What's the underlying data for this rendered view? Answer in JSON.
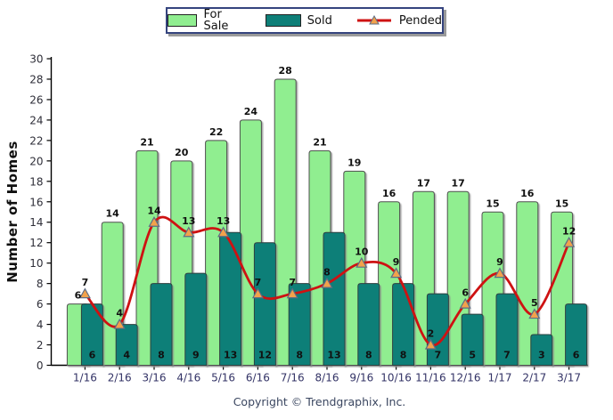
{
  "footer": {
    "copyright": "Copyright © Trendgraphix, Inc."
  },
  "colors": {
    "for_sale": "#90EE90",
    "sold": "#0E7F78",
    "pended_line": "#CE1212",
    "marker_fill": "#F2A24B",
    "marker_stroke": "#5E6C85",
    "legend_border": "#35447E",
    "axis": "#000000",
    "x_tick_label": "#333366"
  },
  "chart_data": {
    "type": "bar",
    "title": "",
    "xlabel": "",
    "ylabel": "Number of Homes",
    "ylim": [
      0,
      30
    ],
    "ytick_step": 2,
    "grid": false,
    "legend_position": "top-center",
    "categories": [
      "1/16",
      "2/16",
      "3/16",
      "4/16",
      "5/16",
      "6/16",
      "7/16",
      "8/16",
      "9/16",
      "10/16",
      "11/16",
      "12/16",
      "1/17",
      "2/17",
      "3/17"
    ],
    "series": [
      {
        "name": "For Sale",
        "style": "bar",
        "color": "#90EE90",
        "values": [
          6,
          14,
          21,
          20,
          22,
          24,
          28,
          21,
          19,
          16,
          17,
          17,
          15,
          16,
          15
        ]
      },
      {
        "name": "Sold",
        "style": "bar",
        "color": "#0E7F78",
        "values": [
          6,
          4,
          8,
          9,
          13,
          12,
          8,
          13,
          8,
          8,
          7,
          5,
          7,
          3,
          6
        ]
      },
      {
        "name": "Pended",
        "style": "line",
        "color": "#CE1212",
        "marker": "triangle",
        "values": [
          7,
          4,
          14,
          13,
          13,
          7,
          7,
          8,
          10,
          9,
          2,
          6,
          9,
          5,
          12
        ]
      }
    ]
  }
}
